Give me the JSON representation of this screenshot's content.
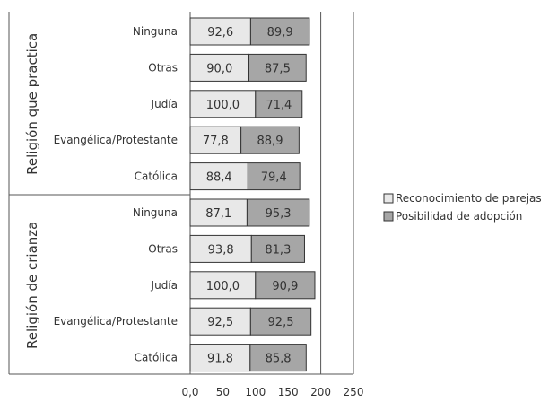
{
  "chart_data": {
    "type": "bar",
    "orientation": "horizontal",
    "stacked": true,
    "groups": [
      {
        "label": "Religión que practica",
        "categories": [
          "Ninguna",
          "Otras",
          "Judía",
          "Evangélica/Protestante",
          "Católica"
        ]
      },
      {
        "label": "Religión de crianza",
        "categories": [
          "Ninguna",
          "Otras",
          "Judía",
          "Evangélica/Protestante",
          "Católica"
        ]
      }
    ],
    "series": [
      {
        "name": "Reconocimiento de parejas",
        "color": "#e8e8e8",
        "values": [
          92.6,
          90.0,
          100.0,
          77.8,
          88.4,
          87.1,
          93.8,
          100.0,
          92.5,
          91.8
        ],
        "labels": [
          "92,6",
          "90,0",
          "100,0",
          "77,8",
          "88,4",
          "87,1",
          "93,8",
          "100,0",
          "92,5",
          "91,8"
        ]
      },
      {
        "name": "Posibilidad de adopción",
        "color": "#a6a6a6",
        "values": [
          89.9,
          87.5,
          71.4,
          88.9,
          79.4,
          95.3,
          81.3,
          90.9,
          92.5,
          85.8
        ],
        "labels": [
          "89,9",
          "87,5",
          "71,4",
          "88,9",
          "79,4",
          "95,3",
          "81,3",
          "90,9",
          "92,5",
          "85,8"
        ]
      }
    ],
    "x_ticks": [
      "0,0",
      "50",
      "100",
      "150",
      "200",
      "250"
    ],
    "xlim": [
      0,
      250
    ],
    "gridlines_at": [
      200,
      250
    ],
    "legend_position": "right",
    "title": "",
    "xlabel": "",
    "ylabel": ""
  }
}
